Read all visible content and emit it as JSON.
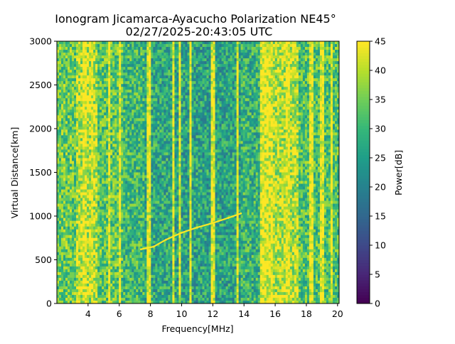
{
  "chart_data": {
    "type": "heatmap",
    "title": "Ionogram Jicamarca-Ayacucho Polarization NE45°",
    "subtitle": "02/27/2025-20:43:05 UTC",
    "xlabel": "Frequency[MHz]",
    "ylabel": "Virtual Distance[km]",
    "xlim": [
      2.0,
      20.1
    ],
    "ylim": [
      0,
      3000
    ],
    "xticks": [
      4,
      6,
      8,
      10,
      12,
      14,
      16,
      18,
      20
    ],
    "yticks": [
      0,
      500,
      1000,
      1500,
      2000,
      2500,
      3000
    ],
    "colorbar": {
      "label": "Power[dB]",
      "range": [
        0,
        45
      ],
      "ticks": [
        0,
        5,
        10,
        15,
        20,
        25,
        30,
        35,
        40,
        45
      ],
      "colormap": "viridis"
    },
    "trace": {
      "name": "",
      "points": [
        {
          "x": 7.4,
          "y": 620
        },
        {
          "x": 8.2,
          "y": 650
        },
        {
          "x": 9.0,
          "y": 730
        },
        {
          "x": 10.0,
          "y": 810
        },
        {
          "x": 11.0,
          "y": 870
        },
        {
          "x": 12.0,
          "y": 920
        },
        {
          "x": 13.0,
          "y": 980
        },
        {
          "x": 13.8,
          "y": 1030
        }
      ]
    },
    "bands": [
      {
        "x_start": 2.0,
        "x_end": 3.3,
        "level_db": 34
      },
      {
        "x_start": 3.3,
        "x_end": 4.6,
        "level_db": 40
      },
      {
        "x_start": 4.6,
        "x_end": 6.2,
        "level_db": 33
      },
      {
        "x_start": 6.2,
        "x_end": 7.6,
        "level_db": 30
      },
      {
        "x_start": 7.6,
        "x_end": 9.6,
        "level_db": 27
      },
      {
        "x_start": 9.6,
        "x_end": 13.8,
        "level_db": 26
      },
      {
        "x_start": 13.8,
        "x_end": 15.0,
        "level_db": 29
      },
      {
        "x_start": 15.0,
        "x_end": 15.8,
        "level_db": 44
      },
      {
        "x_start": 15.8,
        "x_end": 17.5,
        "level_db": 40
      },
      {
        "x_start": 17.5,
        "x_end": 20.1,
        "level_db": 32
      }
    ],
    "bright_lines_mhz": [
      3.8,
      4.3,
      5.4,
      6.0,
      7.9,
      9.5,
      9.9,
      10.6,
      12.0,
      13.6,
      15.2,
      16.8,
      18.3,
      19.0,
      19.6
    ]
  }
}
